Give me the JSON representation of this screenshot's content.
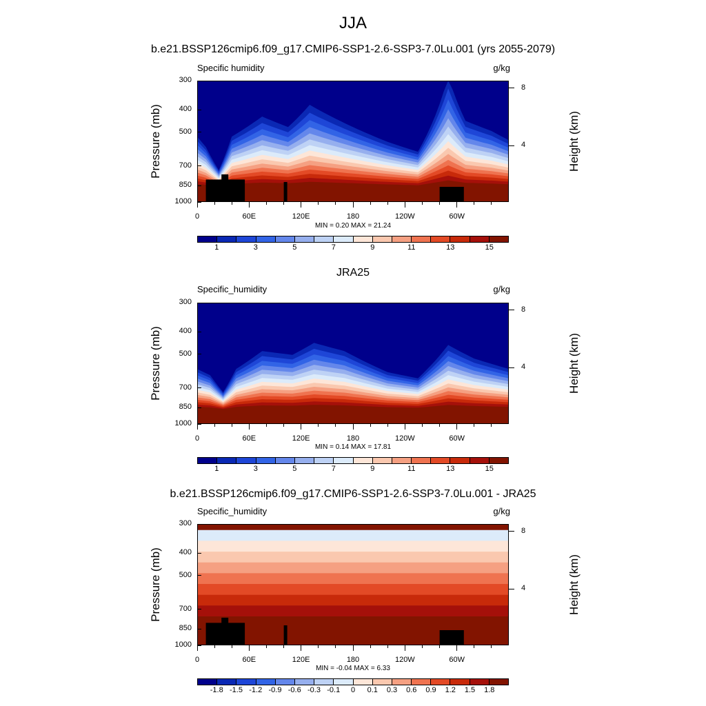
{
  "figure": {
    "title": "JJA"
  },
  "panels": [
    {
      "id": "model",
      "title": "b.e21.BSSP126cmip6.f09_g17.CMIP6-SSP1-2.6-SSP3-7.0Lu.001 (yrs 2055-2079)",
      "left_label": "Specific humidity",
      "right_label": "g/kg",
      "min_max": "MIN =   0.20  MAX =  21.24",
      "colorbar_labels": [
        "1",
        "3",
        "5",
        "7",
        "9",
        "11",
        "13",
        "15"
      ],
      "colors": [
        "#00008b",
        "#0a28b4",
        "#1e46d7",
        "#3264e6",
        "#6487eb",
        "#96afee",
        "#bed2f5",
        "#dcebfa",
        "#fde6d8",
        "#fac8af",
        "#f5a082",
        "#ef7350",
        "#e34a26",
        "#c82a0a",
        "#a5100a",
        "#821400"
      ]
    },
    {
      "id": "obs",
      "title": "JRA25",
      "left_label": "Specific_humidity",
      "right_label": "g/kg",
      "min_max": "MIN =   0.14  MAX =  17.81",
      "colorbar_labels": [
        "1",
        "3",
        "5",
        "7",
        "9",
        "11",
        "13",
        "15"
      ],
      "colors": [
        "#00008b",
        "#0a28b4",
        "#1e46d7",
        "#3264e6",
        "#6487eb",
        "#96afee",
        "#bed2f5",
        "#dcebfa",
        "#fde6d8",
        "#fac8af",
        "#f5a082",
        "#ef7350",
        "#e34a26",
        "#c82a0a",
        "#a5100a",
        "#821400"
      ]
    },
    {
      "id": "diff",
      "title": "b.e21.BSSP126cmip6.f09_g17.CMIP6-SSP1-2.6-SSP3-7.0Lu.001 - JRA25",
      "left_label": "Specific_humidity",
      "right_label": "g/kg",
      "min_max": "MIN =  -0.04  MAX =   6.33",
      "colorbar_labels": [
        "-1.8",
        "-1.5",
        "-1.2",
        "-0.9",
        "-0.6",
        "-0.3",
        "-0.1",
        "0",
        "0.1",
        "0.3",
        "0.6",
        "0.9",
        "1.2",
        "1.5",
        "1.8"
      ],
      "colors": [
        "#00008b",
        "#0a28b4",
        "#1e46d7",
        "#3264e6",
        "#6487eb",
        "#96afee",
        "#bed2f5",
        "#dcebfa",
        "#fde6d8",
        "#fac8af",
        "#f5a082",
        "#ef7350",
        "#e34a26",
        "#c82a0a",
        "#a5100a",
        "#821400"
      ]
    }
  ],
  "axes": {
    "ylabel": "Pressure (mb)",
    "y2label": "Height (km)",
    "pressure_ticks": [
      "300",
      "400",
      "500",
      "700",
      "850",
      "1000"
    ],
    "height_ticks": [
      "8",
      "4"
    ],
    "x_ticks": [
      "0",
      "60E",
      "120E",
      "180",
      "120W",
      "60W"
    ]
  },
  "chart_data": [
    {
      "type": "heatmap",
      "title": "b.e21.BSSP126cmip6.f09_g17.CMIP6-SSP1-2.6-SSP3-7.0Lu.001 (yrs 2055-2079)",
      "variable": "Specific humidity",
      "units": "g/kg",
      "x": [
        0,
        60,
        120,
        180,
        240,
        300
      ],
      "y_pressure": [
        300,
        400,
        500,
        700,
        850,
        1000
      ],
      "y2_height_km": [
        8,
        4
      ],
      "levels": [
        1,
        2,
        3,
        4,
        5,
        6,
        7,
        8,
        9,
        10,
        11,
        12,
        13,
        14,
        15
      ],
      "min": 0.2,
      "max": 21.24,
      "surface_low_hPa": 300,
      "surface_high_hPa": 1000,
      "ridges": [
        [
          0,
          500
        ],
        [
          10,
          560
        ],
        [
          25,
          720
        ],
        [
          40,
          500
        ],
        [
          75,
          400
        ],
        [
          105,
          450
        ],
        [
          130,
          350
        ],
        [
          165,
          420
        ],
        [
          220,
          530
        ],
        [
          255,
          590
        ],
        [
          290,
          250
        ],
        [
          310,
          420
        ],
        [
          340,
          470
        ],
        [
          360,
          520
        ]
      ]
    },
    {
      "type": "heatmap",
      "title": "JRA25",
      "variable": "Specific_humidity",
      "units": "g/kg",
      "x": [
        0,
        60,
        120,
        180,
        240,
        300
      ],
      "y_pressure": [
        300,
        400,
        500,
        700,
        850,
        1000
      ],
      "y2_height_km": [
        8,
        4
      ],
      "levels": [
        1,
        2,
        3,
        4,
        5,
        6,
        7,
        8,
        9,
        10,
        11,
        12,
        13,
        14,
        15
      ],
      "min": 0.14,
      "max": 17.81,
      "surface_low_hPa": 300,
      "surface_high_hPa": 1000,
      "ridges": [
        [
          0,
          560
        ],
        [
          15,
          600
        ],
        [
          30,
          720
        ],
        [
          45,
          560
        ],
        [
          75,
          460
        ],
        [
          110,
          480
        ],
        [
          135,
          420
        ],
        [
          170,
          460
        ],
        [
          220,
          580
        ],
        [
          255,
          620
        ],
        [
          290,
          430
        ],
        [
          320,
          500
        ],
        [
          360,
          560
        ]
      ]
    },
    {
      "type": "heatmap",
      "title": "b.e21.BSSP126cmip6.f09_g17.CMIP6-SSP1-2.6-SSP3-7.0Lu.001 - JRA25",
      "variable": "Specific_humidity",
      "units": "g/kg",
      "x": [
        0,
        60,
        120,
        180,
        240,
        300
      ],
      "y_pressure": [
        300,
        400,
        500,
        700,
        850,
        1000
      ],
      "y2_height_km": [
        8,
        4
      ],
      "levels": [
        -1.8,
        -1.5,
        -1.2,
        -0.9,
        -0.6,
        -0.3,
        -0.1,
        0,
        0.1,
        0.3,
        0.6,
        0.9,
        1.2,
        1.5,
        1.8
      ],
      "min": -0.04,
      "max": 6.33,
      "surface_low_hPa": 300,
      "surface_high_hPa": 1000
    }
  ]
}
